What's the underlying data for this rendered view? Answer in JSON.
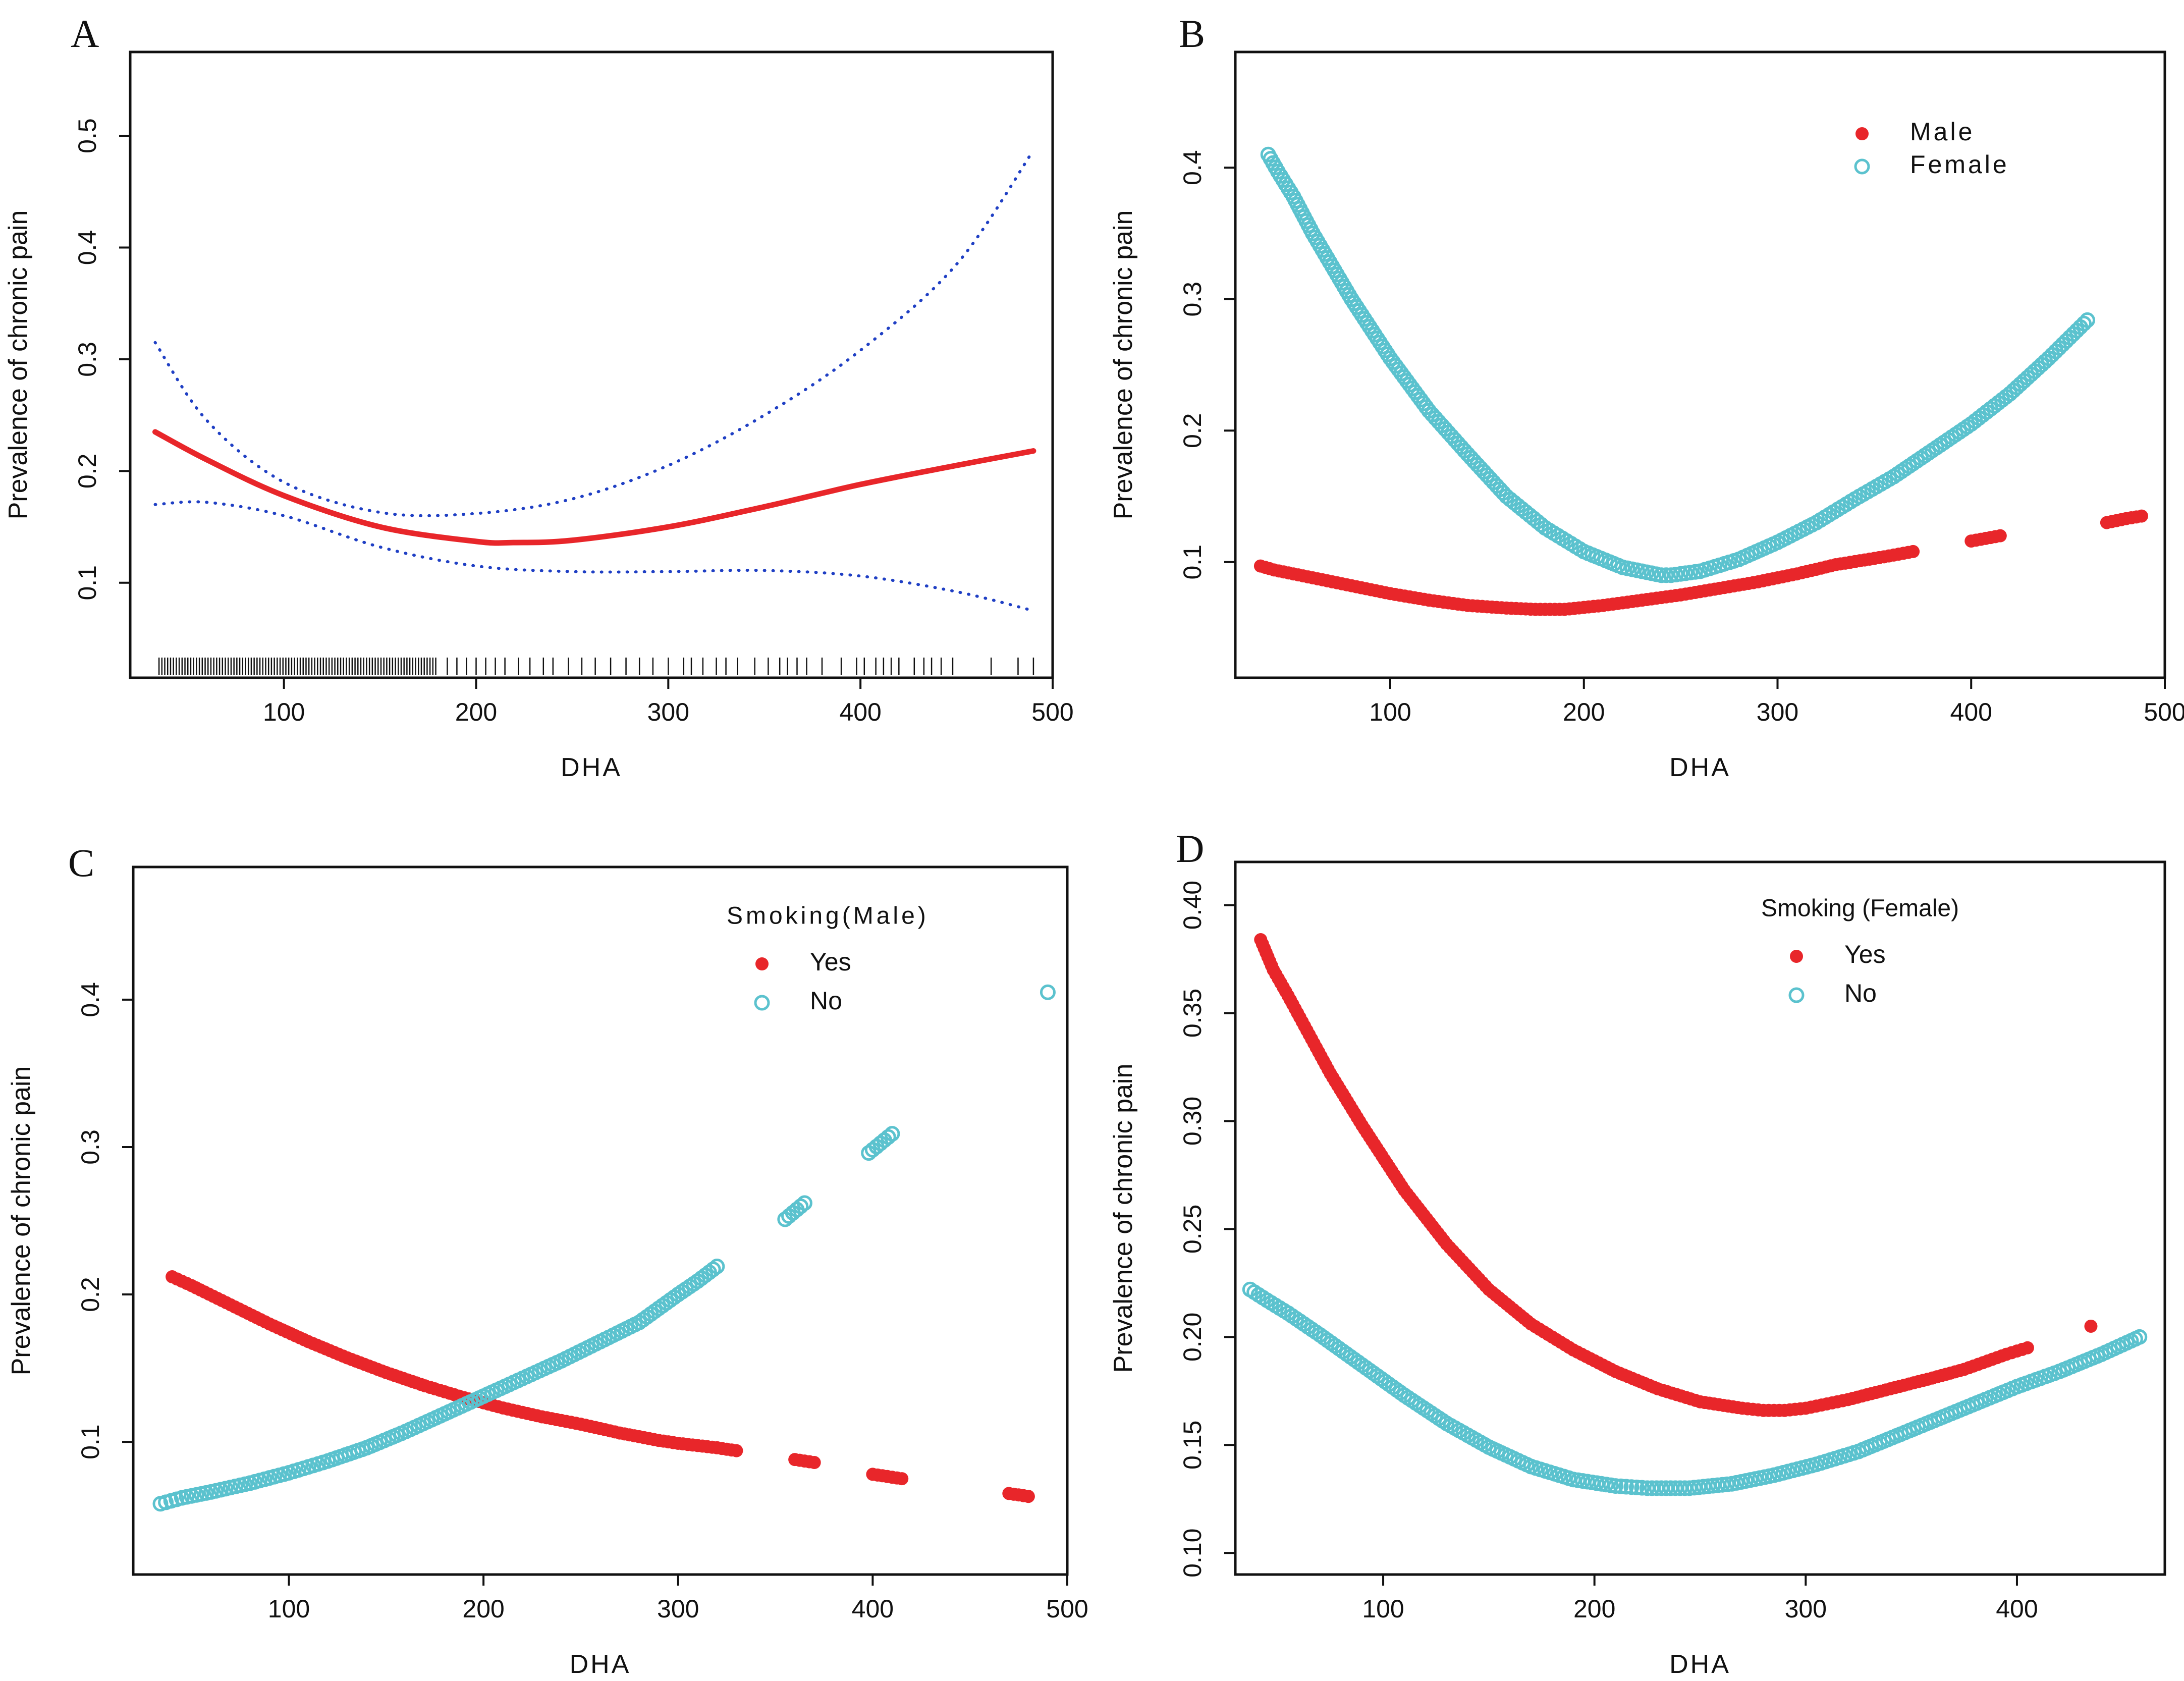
{
  "figure": {
    "background": "#ffffff",
    "colors": {
      "red": "#e8262a",
      "cyan": "#5bc2ce",
      "blue": "#1f3fc4",
      "axis": "#111111"
    }
  },
  "chart_data": [
    {
      "id": "A",
      "letter": "A",
      "type": "line",
      "xlabel": "DHA",
      "ylabel": "Prevalence of chronic pain",
      "xlim": [
        20,
        500
      ],
      "ylim": [
        0.015,
        0.575
      ],
      "xticks": [
        100,
        200,
        300,
        400,
        500
      ],
      "yticks": [
        0.1,
        0.2,
        0.3,
        0.4,
        0.5
      ],
      "series": [
        {
          "name": "Fit",
          "style": "solid",
          "color": "#e8262a",
          "x": [
            33,
            60,
            100,
            150,
            200,
            220,
            250,
            300,
            350,
            400,
            450,
            490
          ],
          "y": [
            0.235,
            0.21,
            0.178,
            0.15,
            0.137,
            0.136,
            0.138,
            0.15,
            0.168,
            0.188,
            0.205,
            0.218
          ]
        },
        {
          "name": "Upper CI",
          "style": "dotted",
          "color": "#1f3fc4",
          "x": [
            33,
            60,
            100,
            150,
            200,
            250,
            300,
            350,
            400,
            450,
            490
          ],
          "y": [
            0.315,
            0.245,
            0.19,
            0.163,
            0.162,
            0.175,
            0.205,
            0.25,
            0.308,
            0.385,
            0.487
          ]
        },
        {
          "name": "Lower CI",
          "style": "dotted",
          "color": "#1f3fc4",
          "x": [
            33,
            60,
            100,
            150,
            200,
            250,
            300,
            350,
            400,
            450,
            490
          ],
          "y": [
            0.17,
            0.172,
            0.16,
            0.132,
            0.115,
            0.11,
            0.11,
            0.111,
            0.106,
            0.092,
            0.075
          ]
        }
      ],
      "rug": {
        "dense_range": [
          35,
          180
        ],
        "sparse": [
          185,
          190,
          195,
          200,
          205,
          210,
          215,
          222,
          228,
          235,
          240,
          248,
          255,
          262,
          270,
          278,
          285,
          292,
          300,
          308,
          312,
          318,
          325,
          330,
          336,
          345,
          352,
          358,
          362,
          367,
          372,
          380,
          390,
          398,
          402,
          408,
          412,
          416,
          420,
          428,
          433,
          437,
          442,
          448,
          468,
          482,
          490
        ]
      }
    },
    {
      "id": "B",
      "letter": "B",
      "type": "scatter",
      "xlabel": "DHA",
      "ylabel": "Prevalence of chronic pain",
      "xlim": [
        20,
        500
      ],
      "ylim": [
        0.012,
        0.488
      ],
      "xticks": [
        100,
        200,
        300,
        400,
        500
      ],
      "yticks": [
        0.1,
        0.2,
        0.3,
        0.4
      ],
      "legend": {
        "position": "top-right",
        "title": ""
      },
      "series": [
        {
          "name": "Male",
          "marker": "filled",
          "color": "#e8262a",
          "x": [
            33,
            40,
            60,
            80,
            100,
            120,
            140,
            160,
            175,
            190,
            210,
            230,
            250,
            270,
            290,
            310,
            330,
            355,
            370,
            400,
            415,
            470,
            480,
            488
          ],
          "y": [
            0.097,
            0.094,
            0.088,
            0.082,
            0.076,
            0.071,
            0.067,
            0.065,
            0.064,
            0.064,
            0.067,
            0.071,
            0.075,
            0.08,
            0.085,
            0.091,
            0.098,
            0.104,
            0.108,
            0.116,
            0.12,
            0.13,
            0.133,
            0.135
          ]
        },
        {
          "name": "Female",
          "marker": "open",
          "color": "#5bc2ce",
          "x": [
            37,
            42,
            50,
            60,
            70,
            80,
            100,
            120,
            140,
            160,
            180,
            200,
            220,
            240,
            245,
            260,
            280,
            300,
            320,
            340,
            360,
            380,
            400,
            420,
            440,
            460
          ],
          "y": [
            0.41,
            0.397,
            0.378,
            0.35,
            0.325,
            0.3,
            0.255,
            0.215,
            0.182,
            0.15,
            0.126,
            0.108,
            0.096,
            0.09,
            0.09,
            0.093,
            0.102,
            0.115,
            0.13,
            0.148,
            0.165,
            0.185,
            0.205,
            0.228,
            0.255,
            0.284
          ]
        }
      ]
    },
    {
      "id": "C",
      "letter": "C",
      "type": "scatter",
      "xlabel": "DHA",
      "ylabel": "Prevalence of chronic pain",
      "xlim": [
        20,
        500
      ],
      "ylim": [
        0.01,
        0.49
      ],
      "xticks": [
        100,
        200,
        300,
        400,
        500
      ],
      "yticks": [
        0.1,
        0.2,
        0.3,
        0.4
      ],
      "legend": {
        "position": "top-right",
        "title": "Smoking(Male)"
      },
      "series": [
        {
          "name": "Yes",
          "marker": "filled",
          "color": "#e8262a",
          "x": [
            40,
            50,
            70,
            90,
            110,
            130,
            150,
            170,
            190,
            210,
            230,
            250,
            270,
            290,
            300,
            320,
            330,
            360,
            370,
            400,
            415,
            470,
            480
          ],
          "y": [
            0.212,
            0.206,
            0.193,
            0.18,
            0.168,
            0.157,
            0.147,
            0.138,
            0.13,
            0.123,
            0.117,
            0.112,
            0.106,
            0.101,
            0.099,
            0.096,
            0.094,
            0.088,
            0.086,
            0.078,
            0.075,
            0.065,
            0.063
          ]
        },
        {
          "name": "No",
          "marker": "open",
          "color": "#5bc2ce",
          "x": [
            34,
            45,
            60,
            80,
            100,
            120,
            140,
            160,
            180,
            200,
            220,
            240,
            260,
            280,
            300,
            310,
            320,
            355,
            365,
            398,
            410,
            490
          ],
          "y": [
            0.058,
            0.062,
            0.066,
            0.072,
            0.079,
            0.087,
            0.096,
            0.107,
            0.119,
            0.131,
            0.143,
            0.155,
            0.168,
            0.181,
            0.2,
            0.209,
            0.219,
            0.251,
            0.262,
            0.296,
            0.309,
            0.405
          ]
        }
      ]
    },
    {
      "id": "D",
      "letter": "D",
      "type": "scatter",
      "xlabel": "DHA",
      "ylabel": "Prevalence of chronic pain",
      "xlim": [
        30,
        470
      ],
      "ylim": [
        0.09,
        0.42
      ],
      "xticks": [
        100,
        200,
        300,
        400
      ],
      "yticks": [
        0.1,
        0.15,
        0.2,
        0.25,
        0.3,
        0.35,
        0.4
      ],
      "ytick_labels": [
        "0.10",
        "0.15",
        "0.20",
        "0.25",
        "0.30",
        "0.35",
        "0.40"
      ],
      "legend": {
        "position": "top-right",
        "title": "Smoking (Female)"
      },
      "series": [
        {
          "name": "Yes",
          "marker": "filled",
          "color": "#e8262a",
          "x": [
            42,
            48,
            55,
            65,
            75,
            90,
            110,
            130,
            150,
            170,
            190,
            210,
            230,
            250,
            270,
            280,
            290,
            300,
            310,
            320,
            340,
            360,
            375,
            395,
            405,
            435
          ],
          "y": [
            0.384,
            0.37,
            0.358,
            0.34,
            0.322,
            0.298,
            0.268,
            0.243,
            0.222,
            0.206,
            0.194,
            0.184,
            0.176,
            0.17,
            0.167,
            0.166,
            0.166,
            0.167,
            0.169,
            0.171,
            0.176,
            0.181,
            0.185,
            0.192,
            0.195,
            0.205
          ]
        },
        {
          "name": "No",
          "marker": "open",
          "color": "#5bc2ce",
          "x": [
            37,
            45,
            55,
            70,
            90,
            110,
            130,
            150,
            170,
            190,
            210,
            225,
            245,
            265,
            285,
            305,
            325,
            345,
            365,
            385,
            400,
            420,
            440,
            458
          ],
          "y": [
            0.222,
            0.217,
            0.211,
            0.201,
            0.187,
            0.173,
            0.16,
            0.149,
            0.14,
            0.134,
            0.131,
            0.13,
            0.13,
            0.132,
            0.136,
            0.141,
            0.147,
            0.155,
            0.163,
            0.171,
            0.177,
            0.184,
            0.192,
            0.2
          ]
        }
      ]
    }
  ]
}
